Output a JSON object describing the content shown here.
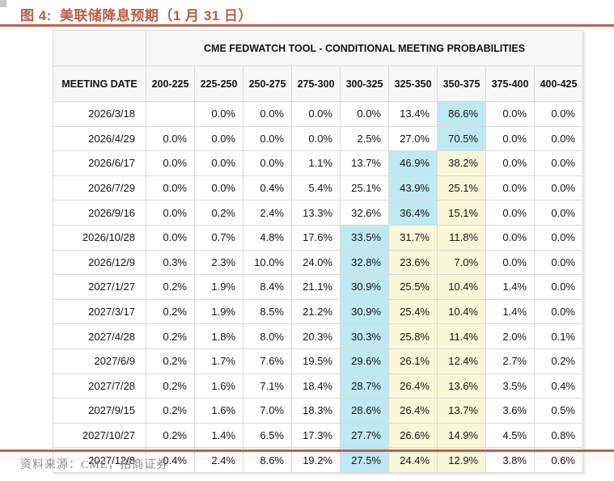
{
  "figure": {
    "title_prefix": "图 4:",
    "title": "美联储降息预期（1 月 31 日）",
    "source": "资料来源：CME，招商证券"
  },
  "colors": {
    "accent": "#BD5C49",
    "rule": "#B5664F",
    "highlight_cyan": "#BEE9F2",
    "highlight_yellow": "#F8F8D8",
    "grid": "#D9D9D9",
    "header_bg": "#F7F7F7",
    "source_text": "#8C8C8C"
  },
  "table": {
    "header": "CME FEDWATCH TOOL - CONDITIONAL MEETING PROBABILITIES",
    "date_column": "MEETING DATE",
    "bins": [
      "200-225",
      "225-250",
      "250-275",
      "275-300",
      "300-325",
      "325-350",
      "350-375",
      "375-400",
      "400-425"
    ],
    "rows": [
      {
        "date": "2026/3/18",
        "values": [
          "",
          "0.0%",
          "0.0%",
          "0.0%",
          "0.0%",
          "13.4%",
          "86.6%",
          "0.0%",
          "0.0%"
        ],
        "cyan": [
          6
        ],
        "yellow": []
      },
      {
        "date": "2026/4/29",
        "values": [
          "0.0%",
          "0.0%",
          "0.0%",
          "0.0%",
          "2.5%",
          "27.0%",
          "70.5%",
          "0.0%",
          "0.0%"
        ],
        "cyan": [
          6
        ],
        "yellow": []
      },
      {
        "date": "2026/6/17",
        "values": [
          "0.0%",
          "0.0%",
          "0.0%",
          "1.1%",
          "13.7%",
          "46.9%",
          "38.2%",
          "0.0%",
          "0.0%"
        ],
        "cyan": [
          5
        ],
        "yellow": [
          6
        ]
      },
      {
        "date": "2026/7/29",
        "values": [
          "0.0%",
          "0.0%",
          "0.4%",
          "5.4%",
          "25.1%",
          "43.9%",
          "25.1%",
          "0.0%",
          "0.0%"
        ],
        "cyan": [
          5
        ],
        "yellow": [
          6
        ]
      },
      {
        "date": "2026/9/16",
        "values": [
          "0.0%",
          "0.2%",
          "2.4%",
          "13.3%",
          "32.6%",
          "36.4%",
          "15.1%",
          "0.0%",
          "0.0%"
        ],
        "cyan": [
          5
        ],
        "yellow": [
          6
        ]
      },
      {
        "date": "2026/10/28",
        "values": [
          "0.0%",
          "0.7%",
          "4.8%",
          "17.6%",
          "33.5%",
          "31.7%",
          "11.8%",
          "0.0%",
          "0.0%"
        ],
        "cyan": [
          4
        ],
        "yellow": [
          5,
          6
        ]
      },
      {
        "date": "2026/12/9",
        "values": [
          "0.3%",
          "2.3%",
          "10.0%",
          "24.0%",
          "32.8%",
          "23.6%",
          "7.0%",
          "0.0%",
          "0.0%"
        ],
        "cyan": [
          4
        ],
        "yellow": [
          5,
          6
        ]
      },
      {
        "date": "2027/1/27",
        "values": [
          "0.2%",
          "1.9%",
          "8.4%",
          "21.1%",
          "30.9%",
          "25.5%",
          "10.4%",
          "1.4%",
          "0.0%"
        ],
        "cyan": [
          4
        ],
        "yellow": [
          5,
          6
        ]
      },
      {
        "date": "2027/3/17",
        "values": [
          "0.2%",
          "1.9%",
          "8.5%",
          "21.2%",
          "30.9%",
          "25.4%",
          "10.4%",
          "1.4%",
          "0.0%"
        ],
        "cyan": [
          4
        ],
        "yellow": [
          5,
          6
        ]
      },
      {
        "date": "2027/4/28",
        "values": [
          "0.2%",
          "1.8%",
          "8.0%",
          "20.3%",
          "30.3%",
          "25.8%",
          "11.4%",
          "2.0%",
          "0.1%"
        ],
        "cyan": [
          4
        ],
        "yellow": [
          5,
          6
        ]
      },
      {
        "date": "2027/6/9",
        "values": [
          "0.2%",
          "1.7%",
          "7.6%",
          "19.5%",
          "29.6%",
          "26.1%",
          "12.4%",
          "2.7%",
          "0.2%"
        ],
        "cyan": [
          4
        ],
        "yellow": [
          5,
          6
        ]
      },
      {
        "date": "2027/7/28",
        "values": [
          "0.2%",
          "1.6%",
          "7.1%",
          "18.4%",
          "28.7%",
          "26.4%",
          "13.6%",
          "3.5%",
          "0.4%"
        ],
        "cyan": [
          4
        ],
        "yellow": [
          5,
          6
        ]
      },
      {
        "date": "2027/9/15",
        "values": [
          "0.2%",
          "1.6%",
          "7.0%",
          "18.3%",
          "28.6%",
          "26.4%",
          "13.7%",
          "3.6%",
          "0.5%"
        ],
        "cyan": [
          4
        ],
        "yellow": [
          5,
          6
        ]
      },
      {
        "date": "2027/10/27",
        "values": [
          "0.2%",
          "1.4%",
          "6.5%",
          "17.3%",
          "27.7%",
          "26.6%",
          "14.9%",
          "4.5%",
          "0.8%"
        ],
        "cyan": [
          4
        ],
        "yellow": [
          5,
          6
        ]
      },
      {
        "date": "2027/12/8",
        "values": [
          "0.4%",
          "2.4%",
          "8.6%",
          "19.2%",
          "27.5%",
          "24.4%",
          "12.9%",
          "3.8%",
          "0.6%"
        ],
        "cyan": [
          4
        ],
        "yellow": [
          5,
          6
        ]
      }
    ]
  }
}
